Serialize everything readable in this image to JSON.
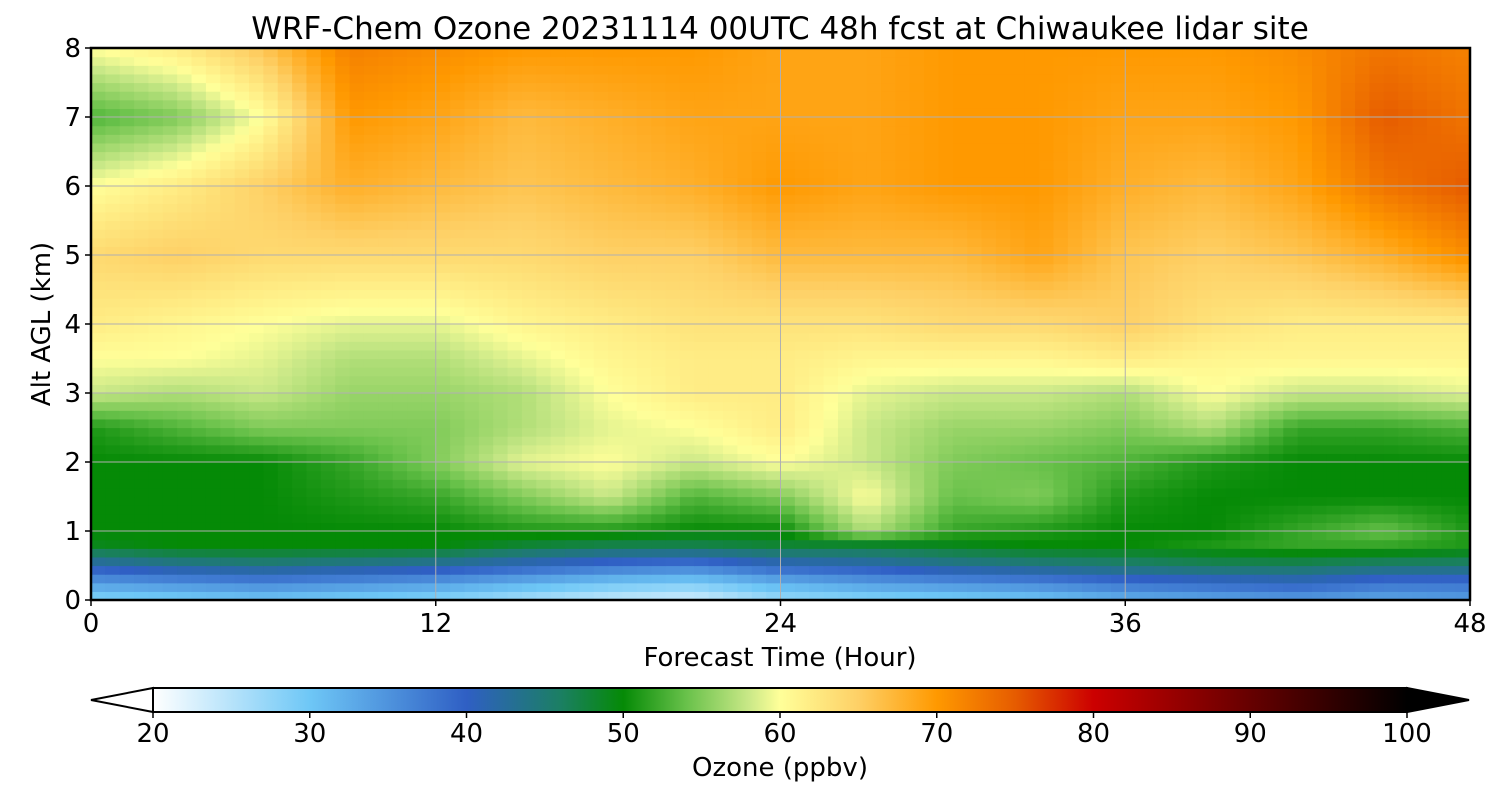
{
  "chart_data": {
    "type": "heatmap",
    "title": "WRF-Chem Ozone  20231114 00UTC 48h fcst at Chiwaukee lidar site",
    "xlabel": "Forecast Time (Hour)",
    "ylabel": "Alt AGL (km)",
    "xlim": [
      0,
      48
    ],
    "ylim": [
      0,
      8
    ],
    "xticks": [
      "0",
      "12",
      "24",
      "36",
      "48"
    ],
    "yticks": [
      "0",
      "1",
      "2",
      "3",
      "4",
      "5",
      "6",
      "7",
      "8"
    ],
    "grid": true,
    "x": [
      0,
      3,
      6,
      9,
      12,
      15,
      18,
      21,
      24,
      27,
      30,
      33,
      36,
      39,
      42,
      45,
      48
    ],
    "y": [
      0,
      0.25,
      0.5,
      0.8,
      1.0,
      1.5,
      2.0,
      2.5,
      3.0,
      3.5,
      4.0,
      5.0,
      6.0,
      7.0,
      8.0
    ],
    "z": [
      [
        28,
        29,
        30,
        29,
        28,
        26,
        24,
        23,
        27,
        28,
        29,
        30,
        32,
        33,
        34,
        33,
        34
      ],
      [
        34,
        35,
        36,
        35,
        34,
        32,
        30,
        29,
        32,
        34,
        35,
        36,
        38,
        39,
        40,
        38,
        38
      ],
      [
        41,
        43,
        44,
        43,
        42,
        40,
        38,
        37,
        40,
        41,
        43,
        44,
        45,
        46,
        46,
        45,
        45
      ],
      [
        49,
        50,
        50,
        50,
        50,
        48,
        47,
        47,
        48,
        48,
        49,
        50,
        50,
        51,
        52,
        52,
        51
      ],
      [
        50,
        50,
        50,
        50,
        50,
        51,
        51,
        50,
        50,
        57,
        52,
        51,
        50,
        50,
        52,
        54,
        51
      ],
      [
        50,
        50,
        50,
        51,
        52,
        55,
        58,
        53,
        55,
        60,
        54,
        55,
        51,
        50,
        50,
        50,
        50
      ],
      [
        50,
        50,
        50,
        52,
        55,
        59,
        60,
        58,
        60,
        58,
        55,
        54,
        53,
        51,
        50,
        50,
        50
      ],
      [
        51,
        53,
        55,
        55,
        55,
        57,
        59,
        60,
        62,
        58,
        56,
        56,
        55,
        57,
        52,
        52,
        53
      ],
      [
        58,
        57,
        58,
        56,
        56,
        57,
        60,
        62,
        62,
        59,
        58,
        58,
        57,
        60,
        58,
        58,
        59
      ],
      [
        60,
        60,
        59,
        57,
        57,
        59,
        61,
        62,
        62,
        61,
        61,
        61,
        62,
        61,
        61,
        61,
        61
      ],
      [
        62,
        61,
        60,
        59,
        59,
        61,
        62,
        63,
        63,
        63,
        64,
        64,
        65,
        63,
        62,
        62,
        62
      ],
      [
        64,
        65,
        64,
        64,
        64,
        64,
        65,
        65,
        67,
        67,
        67,
        69,
        66,
        65,
        66,
        68,
        71
      ],
      [
        60,
        62,
        65,
        68,
        67,
        66,
        67,
        68,
        70,
        69,
        70,
        70,
        68,
        67,
        69,
        73,
        75
      ],
      [
        53,
        55,
        60,
        70,
        69,
        67,
        68,
        69,
        69,
        69,
        70,
        70,
        69,
        69,
        70,
        75,
        73
      ],
      [
        60,
        62,
        66,
        72,
        71,
        70,
        70,
        70,
        69,
        69,
        70,
        70,
        70,
        70,
        71,
        73,
        72
      ]
    ]
  },
  "colorbar": {
    "label": "Ozone  (ppbv)",
    "min": 20,
    "max": 100,
    "ticks": [
      "20",
      "30",
      "40",
      "50",
      "60",
      "70",
      "80",
      "90",
      "100"
    ],
    "extend": "both",
    "stops": [
      {
        "v": 20,
        "c": "#ffffff"
      },
      {
        "v": 30,
        "c": "#6ec7f6"
      },
      {
        "v": 40,
        "c": "#2f5fc4"
      },
      {
        "v": 46,
        "c": "#1b7f63"
      },
      {
        "v": 50,
        "c": "#058a06"
      },
      {
        "v": 54,
        "c": "#68c14a"
      },
      {
        "v": 58,
        "c": "#c9e887"
      },
      {
        "v": 60,
        "c": "#ffff99"
      },
      {
        "v": 65,
        "c": "#fed066"
      },
      {
        "v": 70,
        "c": "#ff9900"
      },
      {
        "v": 75,
        "c": "#e65c00"
      },
      {
        "v": 80,
        "c": "#cc0000"
      },
      {
        "v": 85,
        "c": "#990000"
      },
      {
        "v": 90,
        "c": "#660000"
      },
      {
        "v": 95,
        "c": "#330000"
      },
      {
        "v": 100,
        "c": "#000000"
      }
    ]
  }
}
